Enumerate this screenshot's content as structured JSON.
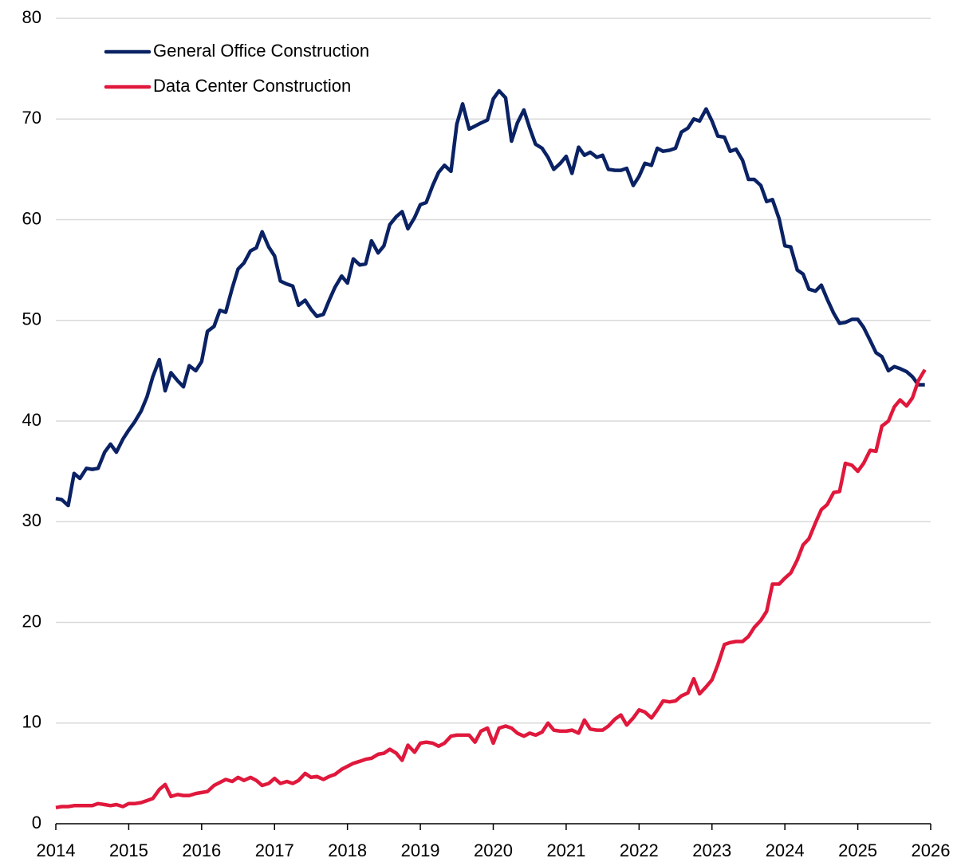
{
  "chart_data": {
    "type": "line",
    "x": [
      2014,
      2014.08,
      2014.17,
      2014.25,
      2014.33,
      2014.42,
      2014.5,
      2014.58,
      2014.67,
      2014.75,
      2014.83,
      2014.92,
      2015,
      2015.08,
      2015.17,
      2015.25,
      2015.33,
      2015.42,
      2015.5,
      2015.58,
      2015.67,
      2015.75,
      2015.83,
      2015.92,
      2016,
      2016.08,
      2016.17,
      2016.25,
      2016.33,
      2016.42,
      2016.5,
      2016.58,
      2016.67,
      2016.75,
      2016.83,
      2016.92,
      2017,
      2017.08,
      2017.17,
      2017.25,
      2017.33,
      2017.42,
      2017.5,
      2017.58,
      2017.67,
      2017.75,
      2017.83,
      2017.92,
      2018,
      2018.08,
      2018.17,
      2018.25,
      2018.33,
      2018.42,
      2018.5,
      2018.58,
      2018.67,
      2018.75,
      2018.83,
      2018.92,
      2019,
      2019.08,
      2019.17,
      2019.25,
      2019.33,
      2019.42,
      2019.5,
      2019.58,
      2019.67,
      2019.75,
      2019.83,
      2019.92,
      2020,
      2020.08,
      2020.17,
      2020.25,
      2020.33,
      2020.42,
      2020.5,
      2020.58,
      2020.67,
      2020.75,
      2020.83,
      2020.92,
      2021,
      2021.08,
      2021.17,
      2021.25,
      2021.33,
      2021.42,
      2021.5,
      2021.58,
      2021.67,
      2021.75,
      2021.83,
      2021.92,
      2022,
      2022.08,
      2022.17,
      2022.25,
      2022.33,
      2022.42,
      2022.5,
      2022.58,
      2022.67,
      2022.75,
      2022.83,
      2022.92,
      2023,
      2023.08,
      2023.17,
      2023.25,
      2023.33,
      2023.42,
      2023.5,
      2023.58,
      2023.67,
      2023.75,
      2023.83,
      2023.92,
      2024,
      2024.08,
      2024.17,
      2024.25,
      2024.33,
      2024.42,
      2024.5,
      2024.58,
      2024.67,
      2024.75,
      2024.83,
      2024.92,
      2025,
      2025.08,
      2025.17,
      2025.25,
      2025.33,
      2025.42,
      2025.5,
      2025.58,
      2025.67,
      2025.75,
      2025.83,
      2025.92
    ],
    "series": [
      {
        "name": "General Office Construction",
        "color": "#0a2264",
        "values": [
          32.3,
          32.2,
          31.6,
          34.8,
          34.3,
          35.3,
          35.2,
          35.3,
          36.9,
          37.7,
          36.9,
          38.2,
          39.1,
          39.9,
          41.0,
          42.4,
          44.4,
          46.1,
          43.0,
          44.8,
          44.0,
          43.4,
          45.5,
          45.0,
          45.9,
          48.9,
          49.4,
          51.0,
          50.8,
          53.2,
          55.1,
          55.7,
          56.9,
          57.2,
          58.8,
          57.3,
          56.4,
          53.9,
          53.6,
          53.4,
          51.5,
          52.0,
          51.1,
          50.4,
          50.6,
          52.0,
          53.3,
          54.4,
          53.7,
          56.1,
          55.5,
          55.6,
          57.9,
          56.7,
          57.4,
          59.5,
          60.3,
          60.8,
          59.1,
          60.2,
          61.5,
          61.7,
          63.4,
          64.7,
          65.4,
          64.8,
          69.5,
          71.5,
          69.0,
          69.3,
          69.6,
          69.9,
          72.0,
          72.8,
          72.1,
          67.8,
          69.6,
          70.9,
          69.1,
          67.5,
          67.1,
          66.2,
          65.0,
          65.6,
          66.3,
          64.6,
          67.2,
          66.4,
          66.7,
          66.2,
          66.4,
          65.0,
          64.9,
          64.9,
          65.1,
          63.4,
          64.3,
          65.6,
          65.4,
          67.1,
          66.8,
          66.9,
          67.1,
          68.7,
          69.1,
          70.0,
          69.8,
          71.0,
          69.8,
          68.3,
          68.2,
          66.8,
          67.0,
          65.9,
          64.0,
          64.0,
          63.4,
          61.8,
          62.0,
          60.1,
          57.4,
          57.3,
          55.0,
          54.6,
          53.1,
          52.9,
          53.5,
          52.1,
          50.7,
          49.7,
          49.8,
          50.1,
          50.1,
          49.3,
          48.0,
          46.8,
          46.4,
          45.0,
          45.4,
          45.2,
          44.9,
          44.4,
          43.6,
          43.6
        ]
      },
      {
        "name": "Data Center Construction",
        "color": "#e0183c",
        "values": [
          1.6,
          1.7,
          1.7,
          1.8,
          1.8,
          1.8,
          1.8,
          2.0,
          1.9,
          1.8,
          1.9,
          1.7,
          2.0,
          2.0,
          2.1,
          2.3,
          2.5,
          3.4,
          3.9,
          2.7,
          2.9,
          2.8,
          2.8,
          3.0,
          3.1,
          3.2,
          3.8,
          4.1,
          4.4,
          4.2,
          4.6,
          4.3,
          4.6,
          4.3,
          3.8,
          4.0,
          4.5,
          4.0,
          4.2,
          4.0,
          4.3,
          5.0,
          4.6,
          4.7,
          4.4,
          4.7,
          4.9,
          5.4,
          5.7,
          6.0,
          6.2,
          6.4,
          6.5,
          6.9,
          7.0,
          7.4,
          7.0,
          6.3,
          7.8,
          7.1,
          8.0,
          8.1,
          8.0,
          7.7,
          8.0,
          8.7,
          8.8,
          8.8,
          8.8,
          8.1,
          9.2,
          9.5,
          8.0,
          9.5,
          9.7,
          9.5,
          9.0,
          8.7,
          9.0,
          8.8,
          9.1,
          10.0,
          9.3,
          9.2,
          9.2,
          9.3,
          9.0,
          10.3,
          9.4,
          9.3,
          9.3,
          9.7,
          10.4,
          10.8,
          9.8,
          10.5,
          11.3,
          11.1,
          10.5,
          11.3,
          12.2,
          12.1,
          12.2,
          12.7,
          13.0,
          14.4,
          12.9,
          13.6,
          14.3,
          15.8,
          17.8,
          18.0,
          18.1,
          18.1,
          18.6,
          19.5,
          20.2,
          21.1,
          23.8,
          23.8,
          24.4,
          24.9,
          26.2,
          27.7,
          28.3,
          29.9,
          31.2,
          31.7,
          32.9,
          33.0,
          35.8,
          35.6,
          35.0,
          35.8,
          37.1,
          37.0,
          39.5,
          40.0,
          41.4,
          42.1,
          41.5,
          42.3,
          44.0,
          45.1
        ]
      }
    ],
    "xlim": [
      2014,
      2026
    ],
    "xticks": [
      2014,
      2015,
      2016,
      2017,
      2018,
      2019,
      2020,
      2021,
      2022,
      2023,
      2024,
      2025,
      2026
    ],
    "ylim": [
      0,
      80
    ],
    "yticks": [
      0,
      10,
      20,
      30,
      40,
      50,
      60,
      70,
      80
    ],
    "grid": true,
    "legend": "upper left"
  }
}
